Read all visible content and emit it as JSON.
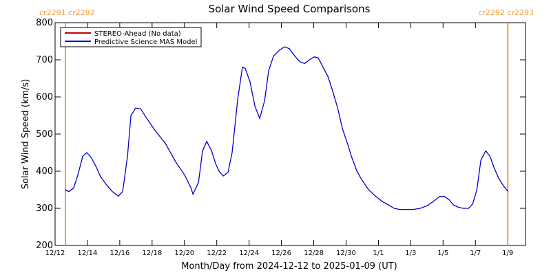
{
  "chart_data": {
    "type": "line",
    "title": "Solar Wind Speed Comparisons",
    "x_label": "Month/Day from 2024-12-12 to 2025-01-09 (UT)",
    "y_label": "Solar Wind Speed (km/s)",
    "xlim": [
      0,
      29.1
    ],
    "ylim": [
      200,
      800
    ],
    "xticks": [
      {
        "value": 0,
        "label": "12/12"
      },
      {
        "value": 2,
        "label": "12/14"
      },
      {
        "value": 4,
        "label": "12/16"
      },
      {
        "value": 6,
        "label": "12/18"
      },
      {
        "value": 8,
        "label": "12/20"
      },
      {
        "value": 10,
        "label": "12/22"
      },
      {
        "value": 12,
        "label": "12/24"
      },
      {
        "value": 14,
        "label": "12/26"
      },
      {
        "value": 16,
        "label": "12/28"
      },
      {
        "value": 18,
        "label": "12/30"
      },
      {
        "value": 20,
        "label": "1/1"
      },
      {
        "value": 22,
        "label": "1/3"
      },
      {
        "value": 24,
        "label": "1/5"
      },
      {
        "value": 26,
        "label": "1/7"
      },
      {
        "value": 28,
        "label": "1/9"
      }
    ],
    "yticks": [
      200,
      300,
      400,
      500,
      600,
      700,
      800
    ],
    "series": [
      {
        "name": "STEREO-Ahead (No data)",
        "color": "#c00000",
        "x": [],
        "values": []
      },
      {
        "name": "Predictive Science MAS Model",
        "color": "#0000cc",
        "x": [
          0.6,
          0.85,
          1.15,
          1.41,
          1.71,
          1.96,
          2.26,
          2.56,
          2.81,
          3.15,
          3.54,
          3.92,
          4.18,
          4.48,
          4.69,
          4.99,
          5.29,
          5.63,
          6.18,
          6.82,
          7.46,
          8.01,
          8.4,
          8.53,
          8.87,
          9.12,
          9.38,
          9.68,
          9.93,
          10.14,
          10.4,
          10.7,
          10.95,
          11.3,
          11.59,
          11.76,
          12.06,
          12.36,
          12.66,
          12.96,
          13.21,
          13.51,
          13.85,
          14.19,
          14.49,
          14.83,
          15.13,
          15.43,
          15.73,
          16.03,
          16.28,
          16.58,
          16.88,
          17.14,
          17.48,
          17.77,
          18.12,
          18.33,
          18.67,
          18.97,
          19.39,
          19.82,
          20.25,
          20.59,
          20.97,
          21.31,
          21.74,
          22.17,
          22.59,
          23.02,
          23.44,
          23.79,
          24.08,
          24.38,
          24.64,
          24.94,
          25.23,
          25.58,
          25.83,
          26.09,
          26.34,
          26.64,
          26.9,
          27.15,
          27.45,
          27.75,
          28.01
        ],
        "values": [
          350,
          345,
          355,
          390,
          440,
          450,
          435,
          410,
          385,
          365,
          345,
          333,
          345,
          440,
          550,
          570,
          568,
          545,
          510,
          475,
          425,
          390,
          355,
          338,
          370,
          455,
          480,
          455,
          420,
          400,
          387,
          397,
          450,
          595,
          680,
          677,
          640,
          575,
          542,
          590,
          670,
          710,
          725,
          735,
          730,
          710,
          695,
          690,
          700,
          708,
          705,
          680,
          655,
          620,
          570,
          515,
          470,
          440,
          400,
          377,
          350,
          333,
          318,
          310,
          300,
          297,
          297,
          297,
          300,
          307,
          320,
          332,
          332,
          323,
          309,
          303,
          300,
          300,
          312,
          350,
          430,
          455,
          440,
          410,
          380,
          360,
          346
        ]
      }
    ],
    "markers": [
      {
        "x": 0.64,
        "label": "cr2291 cr2292"
      },
      {
        "x": 28,
        "label": "cr2292 cr2293"
      }
    ],
    "marker_color": "#ff9933"
  }
}
